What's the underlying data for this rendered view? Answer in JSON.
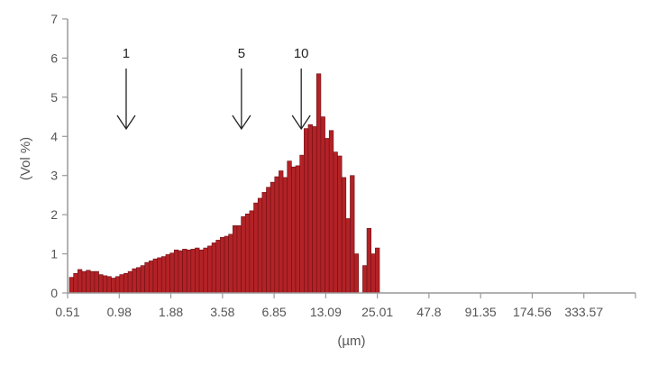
{
  "chart_data": {
    "type": "bar",
    "title": "",
    "xlabel": "(µm)",
    "ylabel": "(Vol %)",
    "ylim": [
      0,
      7
    ],
    "y_ticks": [
      "0",
      "1",
      "2",
      "3",
      "4",
      "5",
      "6",
      "7"
    ],
    "x_scale": "log",
    "x_ticks": [
      "0.51",
      "0.98",
      "1.88",
      "3.58",
      "6.85",
      "13.09",
      "25.01",
      "47.8",
      "91.35",
      "174.56",
      "333.57"
    ],
    "grid": false,
    "bar_color": "#b22226",
    "bar_edge_color": "#6e1015",
    "axis_color": "#999999",
    "values": [
      0.4,
      0.5,
      0.6,
      0.55,
      0.58,
      0.55,
      0.55,
      0.47,
      0.44,
      0.42,
      0.38,
      0.42,
      0.47,
      0.5,
      0.55,
      0.62,
      0.65,
      0.7,
      0.78,
      0.82,
      0.87,
      0.9,
      0.93,
      0.98,
      1.02,
      1.1,
      1.08,
      1.12,
      1.1,
      1.12,
      1.15,
      1.1,
      1.15,
      1.2,
      1.28,
      1.35,
      1.42,
      1.45,
      1.5,
      1.72,
      1.72,
      1.95,
      2.02,
      2.1,
      2.3,
      2.42,
      2.57,
      2.7,
      2.83,
      2.97,
      3.12,
      2.95,
      3.37,
      3.22,
      3.25,
      3.52,
      4.2,
      4.3,
      4.25,
      5.6,
      4.5,
      3.95,
      4.15,
      3.6,
      3.5,
      2.95,
      1.9,
      3.0,
      1.0,
      0,
      0.7,
      1.65,
      1.0,
      1.15
    ],
    "size_markers": [
      {
        "label": "1",
        "x": 1.07
      },
      {
        "label": "5",
        "x": 4.6
      },
      {
        "label": "10",
        "x": 9.8
      }
    ]
  }
}
